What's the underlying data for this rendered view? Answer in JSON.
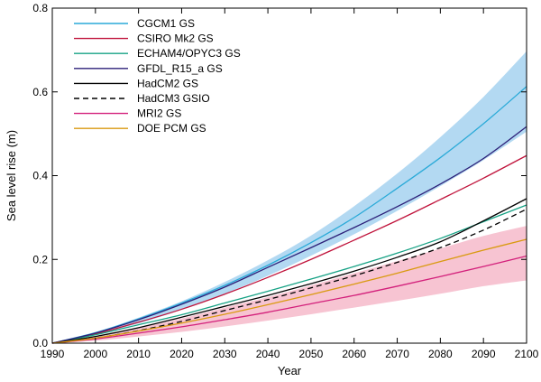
{
  "chart_data": {
    "type": "line",
    "xlabel": "Year",
    "ylabel": "Sea level rise (m)",
    "xlim": [
      1990,
      2100
    ],
    "ylim": [
      0,
      0.8
    ],
    "xticks": [
      1990,
      2000,
      2010,
      2020,
      2030,
      2040,
      2050,
      2060,
      2070,
      2080,
      2090,
      2100
    ],
    "yticks": [
      0.0,
      0.2,
      0.4,
      0.6,
      0.8
    ],
    "ytick_labels": [
      "0.0",
      "0.2",
      "0.4",
      "0.6",
      "0.8"
    ],
    "grid": false,
    "legend_position": "top-left",
    "x": [
      1990,
      2000,
      2010,
      2020,
      2030,
      2040,
      2050,
      2060,
      2070,
      2080,
      2090,
      2100
    ],
    "bands": [
      {
        "color": "#b3d9f2",
        "lower": [
          0.0,
          0.021,
          0.047,
          0.08,
          0.118,
          0.161,
          0.209,
          0.26,
          0.316,
          0.375,
          0.437,
          0.505
        ],
        "upper": [
          0.0,
          0.026,
          0.061,
          0.1,
          0.146,
          0.198,
          0.257,
          0.327,
          0.405,
          0.492,
          0.588,
          0.697
        ]
      },
      {
        "color": "#f7c4d2",
        "lower": [
          0.0,
          0.006,
          0.016,
          0.027,
          0.04,
          0.054,
          0.069,
          0.085,
          0.101,
          0.118,
          0.136,
          0.15
        ],
        "upper": [
          0.0,
          0.016,
          0.036,
          0.059,
          0.085,
          0.11,
          0.138,
          0.167,
          0.196,
          0.226,
          0.256,
          0.28
        ]
      }
    ],
    "series": [
      {
        "name": "CGCM1 GS",
        "color": "#2aaad8",
        "dash": "",
        "values": [
          0.0,
          0.025,
          0.058,
          0.096,
          0.138,
          0.186,
          0.24,
          0.3,
          0.37,
          0.443,
          0.524,
          0.613
        ]
      },
      {
        "name": "CSIRO Mk2 GS",
        "color": "#c0143c",
        "dash": "",
        "values": [
          0.0,
          0.022,
          0.05,
          0.081,
          0.117,
          0.157,
          0.2,
          0.246,
          0.293,
          0.343,
          0.394,
          0.448
        ]
      },
      {
        "name": "ECHAM4/OPYC3 GS",
        "color": "#17a285",
        "dash": "",
        "values": [
          0.0,
          0.02,
          0.044,
          0.068,
          0.096,
          0.124,
          0.153,
          0.183,
          0.215,
          0.25,
          0.29,
          0.33
        ]
      },
      {
        "name": "GFDL_R15_a GS",
        "color": "#2c1f78",
        "dash": "",
        "values": [
          0.0,
          0.024,
          0.056,
          0.093,
          0.134,
          0.181,
          0.228,
          0.276,
          0.326,
          0.38,
          0.441,
          0.517
        ]
      },
      {
        "name": "HadCM2 GS",
        "color": "#000000",
        "dash": "",
        "values": [
          0.0,
          0.016,
          0.037,
          0.062,
          0.088,
          0.114,
          0.142,
          0.172,
          0.205,
          0.242,
          0.292,
          0.345
        ]
      },
      {
        "name": "HadCM3 GSIO",
        "color": "#000000",
        "dash": "6,4",
        "values": [
          0.0,
          0.012,
          0.03,
          0.052,
          0.078,
          0.104,
          0.132,
          0.161,
          0.193,
          0.228,
          0.27,
          0.32
        ]
      },
      {
        "name": "MRI2 GS",
        "color": "#d3207b",
        "dash": "",
        "values": [
          0.0,
          0.01,
          0.024,
          0.039,
          0.056,
          0.074,
          0.094,
          0.114,
          0.136,
          0.159,
          0.183,
          0.208
        ]
      },
      {
        "name": "DOE PCM GS",
        "color": "#d99a10",
        "dash": "",
        "values": [
          0.0,
          0.012,
          0.029,
          0.048,
          0.069,
          0.092,
          0.116,
          0.141,
          0.167,
          0.195,
          0.222,
          0.248
        ]
      }
    ]
  }
}
